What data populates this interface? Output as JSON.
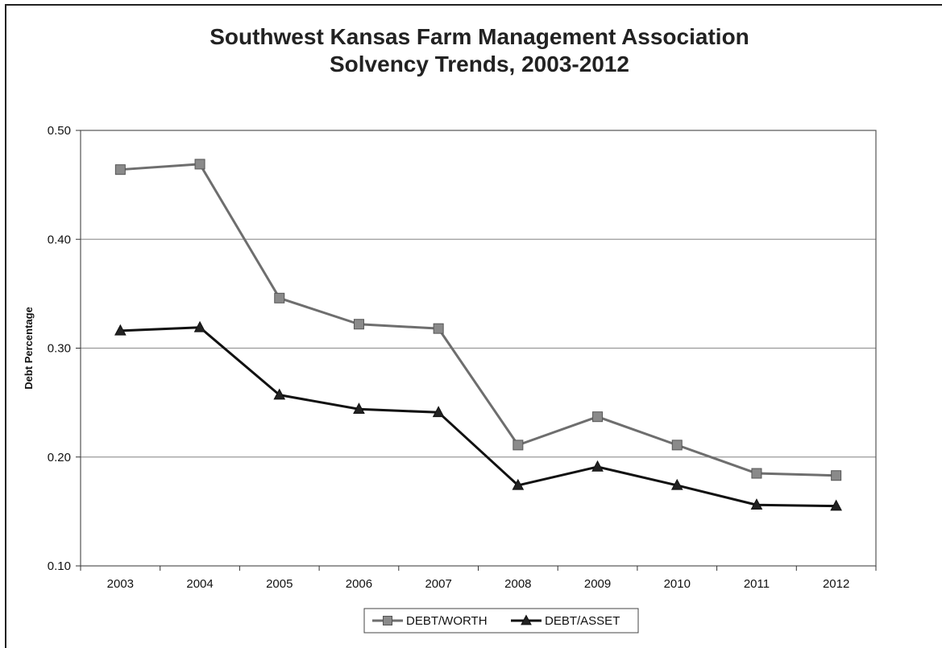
{
  "chart_data": {
    "type": "line",
    "title": "Southwest Kansas Farm Management Association",
    "subtitle": "Solvency Trends, 2003-2012",
    "ylabel": "Debt Percentage",
    "xlabel": "",
    "categories": [
      "2003",
      "2004",
      "2005",
      "2006",
      "2007",
      "2008",
      "2009",
      "2010",
      "2011",
      "2012"
    ],
    "ylim": [
      0.1,
      0.5
    ],
    "yticks": [
      0.1,
      0.2,
      0.3,
      0.4,
      0.5
    ],
    "ytick_labels": [
      "0.10",
      "0.20",
      "0.30",
      "0.40",
      "0.50"
    ],
    "grid": true,
    "legend_position": "bottom",
    "series": [
      {
        "name": "DEBT/WORTH",
        "marker": "square",
        "color": "#6e6e6e",
        "marker_color": "#8a8a8a",
        "values": [
          0.464,
          0.469,
          0.346,
          0.322,
          0.318,
          0.211,
          0.237,
          0.211,
          0.185,
          0.183
        ]
      },
      {
        "name": "DEBT/ASSET",
        "marker": "triangle",
        "color": "#111111",
        "marker_color": "#222222",
        "values": [
          0.316,
          0.319,
          0.257,
          0.244,
          0.241,
          0.174,
          0.191,
          0.174,
          0.156,
          0.155
        ]
      }
    ]
  }
}
